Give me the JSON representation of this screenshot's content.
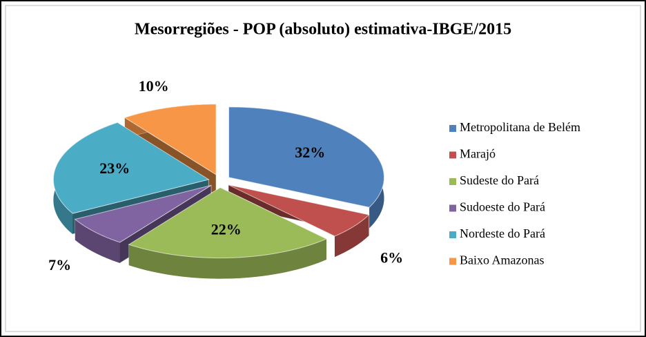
{
  "chart_data": {
    "type": "pie",
    "title": "Mesorregiões - POP (absoluto) estimativa-IBGE/2015",
    "categories": [
      "Metropolitana de Belém",
      "Marajó",
      "Sudeste do Pará",
      "Sudoeste do Pará",
      "Nordeste do Pará",
      "Baixo Amazonas"
    ],
    "values": [
      32,
      6,
      22,
      7,
      23,
      10
    ],
    "value_labels": [
      "32%",
      "6%",
      "22%",
      "7%",
      "23%",
      "10%"
    ],
    "colors": [
      "#4f81bd",
      "#c0504d",
      "#9bbb59",
      "#8064a2",
      "#4bacc6",
      "#f79646"
    ],
    "legend": "right"
  }
}
